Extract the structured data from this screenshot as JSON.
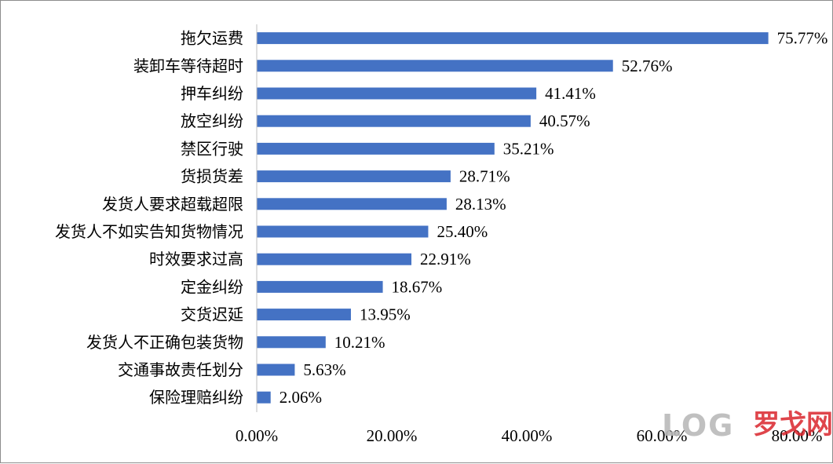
{
  "chart_data": {
    "type": "bar",
    "orientation": "horizontal",
    "categories": [
      "拖欠运费",
      "装卸车等待超时",
      "押车纠纷",
      "放空纠纷",
      "禁区行驶",
      "货损货差",
      "发货人要求超载超限",
      "发货人不如实告知货物情况",
      "时效要求过高",
      "定金纠纷",
      "交货迟延",
      "发货人不正确包装货物",
      "交通事故责任划分",
      "保险理赔纠纷"
    ],
    "values": [
      75.77,
      52.76,
      41.41,
      40.57,
      35.21,
      28.71,
      28.13,
      25.4,
      22.91,
      18.67,
      13.95,
      10.21,
      5.63,
      2.06
    ],
    "data_labels": [
      "75.77%",
      "52.76%",
      "41.41%",
      "40.57%",
      "35.21%",
      "28.71%",
      "28.13%",
      "25.40%",
      "22.91%",
      "18.67%",
      "13.95%",
      "10.21%",
      "5.63%",
      "2.06%"
    ],
    "x_ticks": [
      "0.00%",
      "20.00%",
      "40.00%",
      "60.00%",
      "80.00%"
    ],
    "xlim": [
      0,
      80
    ],
    "title": "",
    "xlabel": "",
    "ylabel": "",
    "bar_color": "#4472c4",
    "grid": false,
    "legend": "none"
  },
  "watermark": {
    "logo_text": "LOG",
    "brand_text": "罗戈网",
    "logo_color": "#b9b9b9",
    "brand_color": "#d9252b"
  }
}
